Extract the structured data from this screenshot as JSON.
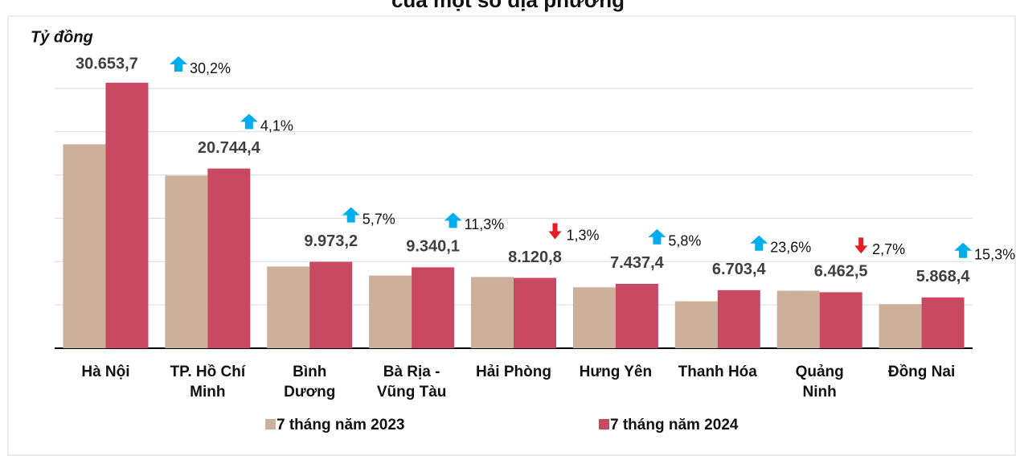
{
  "chart_data": {
    "type": "bar",
    "title": "của một số địa phương",
    "y_label": "Tỷ đồng",
    "categories": [
      "Hà Nội",
      "TP. Hồ Chí Minh",
      "Bình Dương",
      "Bà Rịa - Vũng Tàu",
      "Hải Phòng",
      "Hưng Yên",
      "Thanh Hóa",
      "Quảng Ninh",
      "Đồng Nai"
    ],
    "series": [
      {
        "name": "7 tháng năm 2023",
        "color": "#cdb09b",
        "values": [
          23543.6,
          19927.4,
          9435.4,
          8391.8,
          8227.8,
          7029.7,
          5423.5,
          6641.8,
          5089.7
        ]
      },
      {
        "name": "7 tháng năm 2024",
        "color": "#c94862",
        "values": [
          30653.7,
          20744.4,
          9973.2,
          9340.1,
          8120.8,
          7437.4,
          6703.4,
          6462.5,
          5868.4
        ],
        "value_labels": [
          "30.653,7",
          "20.744,4",
          "9.973,2",
          "9.340,1",
          "8.120,8",
          "7.437,4",
          "6.703,4",
          "6.462,5",
          "5.868,4"
        ]
      }
    ],
    "change": {
      "values": [
        30.2,
        4.1,
        5.7,
        11.3,
        -1.3,
        5.8,
        23.6,
        -2.7,
        15.3
      ],
      "value_labels": [
        "30,2%",
        "4,1%",
        "5,7%",
        "11,3%",
        "1,3%",
        "5,8%",
        "23,6%",
        "2,7%",
        "15,3%"
      ]
    },
    "ylim": [
      0,
      35000
    ],
    "yticks": [
      0,
      5000,
      10000,
      15000,
      20000,
      25000,
      30000
    ],
    "grid": true,
    "legend": "bottom"
  }
}
